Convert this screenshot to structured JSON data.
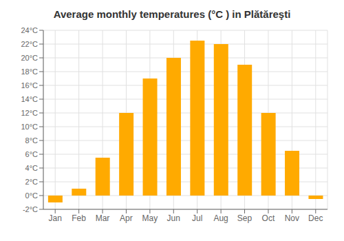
{
  "chart_data": {
    "type": "bar",
    "title": "Average monthly temperatures (°C ) in Plătăreşti",
    "categories": [
      "Jan",
      "Feb",
      "Mar",
      "Apr",
      "May",
      "Jun",
      "Jul",
      "Aug",
      "Sep",
      "Oct",
      "Nov",
      "Dec"
    ],
    "values": [
      -1.0,
      1.0,
      5.5,
      12.0,
      17.0,
      20.0,
      22.5,
      22.0,
      19.0,
      12.0,
      6.5,
      -0.5
    ],
    "color": "#FFAA00",
    "ylim": [
      -2,
      24
    ],
    "yticks": [
      {
        "value": -2,
        "label": "-2°C"
      },
      {
        "value": 0,
        "label": "0°C"
      },
      {
        "value": 2,
        "label": "2°C"
      },
      {
        "value": 4,
        "label": "4°C"
      },
      {
        "value": 6,
        "label": "6°C"
      },
      {
        "value": 8,
        "label": "8°C"
      },
      {
        "value": 10,
        "label": "10°C"
      },
      {
        "value": 12,
        "label": "12°C"
      },
      {
        "value": 14,
        "label": "14°C"
      },
      {
        "value": 16,
        "label": "16°C"
      },
      {
        "value": 18,
        "label": "18°C"
      },
      {
        "value": 20,
        "label": "20°C"
      },
      {
        "value": 22,
        "label": "22°C"
      },
      {
        "value": 24,
        "label": "24°C"
      }
    ],
    "grid": true
  }
}
